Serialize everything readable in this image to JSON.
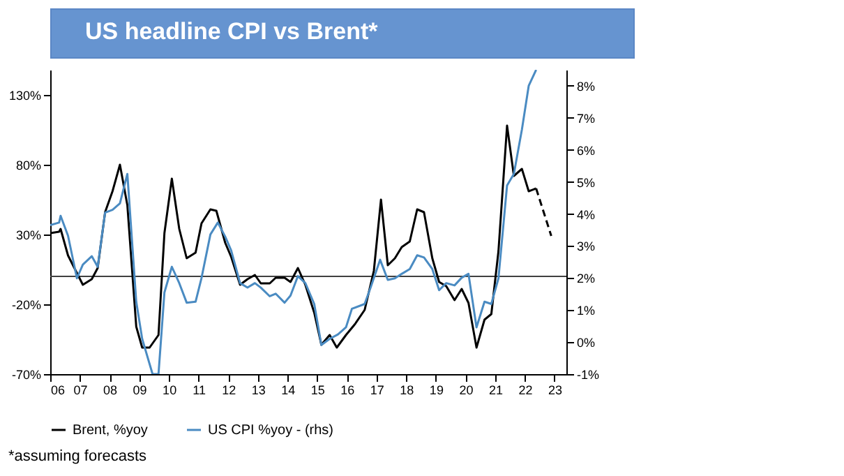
{
  "chart_data": {
    "type": "line",
    "title": "US headline CPI vs Brent*",
    "annotations": [
      "*assuming forecasts"
    ],
    "xlim": [
      2006,
      2023.4
    ],
    "xticks": [
      {
        "value": 2006,
        "label": "06"
      },
      {
        "value": 2007,
        "label": "07"
      },
      {
        "value": 2008,
        "label": "08"
      },
      {
        "value": 2009,
        "label": "09"
      },
      {
        "value": 2010,
        "label": "10"
      },
      {
        "value": 2011,
        "label": "11"
      },
      {
        "value": 2012,
        "label": "12"
      },
      {
        "value": 2013,
        "label": "13"
      },
      {
        "value": 2014,
        "label": "14"
      },
      {
        "value": 2015,
        "label": "15"
      },
      {
        "value": 2016,
        "label": "16"
      },
      {
        "value": 2017,
        "label": "17"
      },
      {
        "value": 2018,
        "label": "18"
      },
      {
        "value": 2019,
        "label": "19"
      },
      {
        "value": 2020,
        "label": "20"
      },
      {
        "value": 2021,
        "label": "21"
      },
      {
        "value": 2022,
        "label": "22"
      },
      {
        "value": 2023,
        "label": "23"
      }
    ],
    "ylim": [
      -70,
      148
    ],
    "yticks": [
      {
        "value": -70,
        "label": "-70%"
      },
      {
        "value": -20,
        "label": "-20%"
      },
      {
        "value": 30,
        "label": "30%"
      },
      {
        "value": 80,
        "label": "80%"
      },
      {
        "value": 130,
        "label": "130%"
      }
    ],
    "y2lim": [
      -1,
      8.5
    ],
    "y2ticks": [
      {
        "value": -1,
        "label": "-1%"
      },
      {
        "value": 0,
        "label": "0%"
      },
      {
        "value": 1,
        "label": "1%"
      },
      {
        "value": 2,
        "label": "2%"
      },
      {
        "value": 3,
        "label": "3%"
      },
      {
        "value": 4,
        "label": "4%"
      },
      {
        "value": 5,
        "label": "5%"
      },
      {
        "value": 6,
        "label": "6%"
      },
      {
        "value": 7,
        "label": "7%"
      },
      {
        "value": 8,
        "label": "8%"
      }
    ],
    "ref_lines": [
      {
        "axis": "y",
        "value": 0,
        "color": "#404040"
      }
    ],
    "legend": "bottom",
    "grid": false,
    "series": [
      {
        "name": "Brent, %yoy",
        "color": "#000000",
        "line_style": "solid",
        "x": [
          2006.0,
          2006.3,
          2006.35,
          2006.6,
          2007.1,
          2007.4,
          2007.6,
          2007.85,
          2008.1,
          2008.35,
          2008.6,
          2008.9,
          2009.1,
          2009.35,
          2009.65,
          2009.85,
          2010.1,
          2010.35,
          2010.6,
          2010.9,
          2011.1,
          2011.4,
          2011.6,
          2011.9,
          2012.1,
          2012.4,
          2012.65,
          2012.9,
          2013.1,
          2013.4,
          2013.6,
          2013.9,
          2014.1,
          2014.35,
          2014.6,
          2014.9,
          2015.14,
          2015.42,
          2015.66,
          2015.97,
          2016.28,
          2016.6,
          2016.91,
          2017.15,
          2017.38,
          2017.62,
          2017.85,
          2018.12,
          2018.37,
          2018.6,
          2018.88,
          2019.11,
          2019.35,
          2019.63,
          2019.87,
          2020.1,
          2020.37,
          2020.64,
          2020.87,
          2021.11,
          2021.4,
          2021.63,
          2021.9,
          2022.13,
          2022.38
        ],
        "values": [
          31,
          32,
          34,
          15,
          -6,
          -2,
          6,
          46,
          61,
          80,
          51,
          -36,
          -51,
          -51,
          -42,
          31,
          70,
          34,
          13,
          17,
          38,
          48,
          47,
          24,
          14,
          -6,
          -2,
          1,
          -5,
          -5,
          -1,
          -1,
          -4,
          6,
          -6,
          -26,
          -49,
          -42,
          -51,
          -42,
          -34,
          -24,
          4,
          55,
          8,
          13,
          21,
          25,
          48,
          46,
          13,
          -4,
          -7,
          -17,
          -9,
          -19,
          -51,
          -31,
          -27,
          18,
          108,
          72,
          77,
          61,
          63
        ]
      },
      {
        "color": "#000000",
        "line_style": "dashed",
        "x": [
          2022.38,
          2022.89
        ],
        "values": [
          63,
          29
        ]
      },
      {
        "name": "US CPI %yoy - (rhs)",
        "color": "#4a8bc2",
        "line_style": "solid",
        "axis": "y2",
        "x": [
          2006.0,
          2006.3,
          2006.35,
          2006.6,
          2006.9,
          2007.1,
          2007.4,
          2007.6,
          2007.85,
          2008.1,
          2008.35,
          2008.6,
          2008.9,
          2009.1,
          2009.45,
          2009.65,
          2009.85,
          2010.1,
          2010.35,
          2010.6,
          2010.9,
          2011.1,
          2011.4,
          2011.65,
          2011.9,
          2012.1,
          2012.4,
          2012.65,
          2012.9,
          2013.1,
          2013.4,
          2013.6,
          2013.9,
          2014.1,
          2014.35,
          2014.6,
          2014.9,
          2015.14,
          2015.42,
          2015.7,
          2015.97,
          2016.17,
          2016.6,
          2016.8,
          2017.12,
          2017.38,
          2017.62,
          2017.85,
          2018.12,
          2018.37,
          2018.6,
          2018.88,
          2019.11,
          2019.35,
          2019.63,
          2019.87,
          2020.1,
          2020.37,
          2020.64,
          2020.87,
          2021.11,
          2021.4,
          2021.63,
          2021.9,
          2022.13,
          2022.38
        ],
        "values": [
          3.65,
          3.73,
          3.94,
          3.32,
          1.99,
          2.42,
          2.68,
          2.35,
          4.04,
          4.13,
          4.33,
          5.25,
          1.26,
          0.1,
          -1.0,
          -1.0,
          1.55,
          2.35,
          1.84,
          1.23,
          1.26,
          2.0,
          3.36,
          3.73,
          3.29,
          2.86,
          1.84,
          1.7,
          1.84,
          1.7,
          1.43,
          1.51,
          1.23,
          1.45,
          2.06,
          1.84,
          1.19,
          -0.09,
          0.1,
          0.24,
          0.46,
          1.04,
          1.19,
          1.7,
          2.57,
          1.94,
          1.99,
          2.13,
          2.28,
          2.71,
          2.64,
          2.28,
          1.62,
          1.84,
          1.77,
          2.01,
          2.13,
          0.46,
          1.26,
          1.19,
          1.99,
          4.89,
          5.25,
          6.63,
          8.0,
          8.5
        ]
      }
    ]
  }
}
